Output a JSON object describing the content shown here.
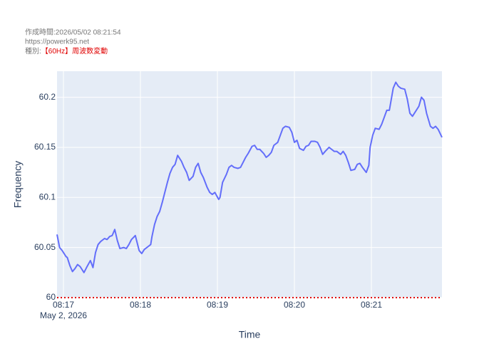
{
  "header": {
    "created": "作成時間:2026/05/02 08:21:54",
    "url": "https://powerk95.net",
    "kind_label": "種別:",
    "kind_value": "【60Hz】周波数変動"
  },
  "chart_data": {
    "type": "line",
    "x_label": "Time",
    "y_label": "Frequency",
    "x_date_label": "May 2, 2026",
    "xlim": [
      29815,
      30115
    ],
    "xticks": [
      {
        "value": 29820,
        "label": "08:17"
      },
      {
        "value": 29880,
        "label": "08:18"
      },
      {
        "value": 29940,
        "label": "08:19"
      },
      {
        "value": 30000,
        "label": "08:20"
      },
      {
        "value": 30060,
        "label": "08:21"
      }
    ],
    "ylim": [
      60,
      60.226
    ],
    "yticks": [
      60,
      60.05,
      60.1,
      60.15,
      60.2
    ],
    "grid": true,
    "hline": 60,
    "hline_color": "#e00000",
    "x": [
      29815,
      29817,
      29819,
      29822,
      29823,
      29825,
      29827,
      29829,
      29831,
      29833,
      29836,
      29838,
      29841,
      29843,
      29845,
      29847,
      29849,
      29852,
      29854,
      29856,
      29858,
      29860,
      29862,
      29864,
      29867,
      29869,
      29871,
      29873,
      29876,
      29877,
      29879,
      29881,
      29883,
      29886,
      29888,
      29889,
      29891,
      29893,
      29895,
      29897,
      29899,
      29901,
      29903,
      29905,
      29907,
      29909,
      29912,
      29914,
      29916,
      29918,
      29921,
      29923,
      29925,
      29927,
      29929,
      29932,
      29934,
      29936,
      29938,
      29941,
      29942,
      29944,
      29947,
      29949,
      29951,
      29953,
      29956,
      29958,
      29960,
      29962,
      29964,
      29967,
      29969,
      29971,
      29973,
      29976,
      29978,
      29980,
      29982,
      29984,
      29987,
      29989,
      29991,
      29993,
      29996,
      29998,
      30000,
      30002,
      30004,
      30007,
      30009,
      30011,
      30013,
      30016,
      30018,
      30020,
      30022,
      30024,
      30027,
      30029,
      30031,
      30033,
      30036,
      30038,
      30040,
      30042,
      30044,
      30047,
      30049,
      30051,
      30053,
      30056,
      30058,
      30059,
      30061,
      30063,
      30066,
      30068,
      30070,
      30072,
      30074,
      30077,
      30079,
      30081,
      30083,
      30086,
      30088,
      30090,
      30092,
      30094,
      30097,
      30099,
      30101,
      30103,
      30106,
      30108,
      30110,
      30112,
      30115
    ],
    "series": [
      {
        "name": "Frequency",
        "color": "#636efa",
        "values": [
          60.063,
          60.05,
          60.047,
          60.041,
          60.04,
          60.032,
          60.026,
          60.029,
          60.033,
          60.031,
          60.025,
          60.03,
          60.037,
          60.03,
          60.045,
          60.053,
          60.056,
          60.059,
          60.058,
          60.061,
          60.062,
          60.068,
          60.057,
          60.049,
          60.05,
          60.049,
          60.053,
          60.058,
          60.062,
          60.057,
          60.047,
          60.044,
          60.048,
          60.051,
          60.053,
          60.061,
          60.073,
          60.081,
          60.086,
          60.095,
          60.105,
          60.115,
          60.124,
          60.13,
          60.133,
          60.142,
          60.136,
          60.13,
          60.125,
          60.117,
          60.121,
          60.13,
          60.134,
          60.125,
          60.12,
          60.11,
          60.105,
          60.103,
          60.105,
          60.098,
          60.1,
          60.115,
          60.123,
          60.13,
          60.132,
          60.13,
          60.129,
          60.13,
          60.135,
          60.14,
          60.144,
          60.151,
          60.152,
          60.148,
          60.148,
          60.144,
          60.14,
          60.142,
          60.145,
          60.152,
          60.155,
          60.162,
          60.169,
          60.171,
          60.17,
          60.165,
          60.155,
          60.157,
          60.149,
          60.147,
          60.151,
          60.152,
          60.156,
          60.156,
          60.155,
          60.15,
          60.143,
          60.146,
          60.15,
          60.148,
          60.146,
          60.146,
          60.143,
          60.146,
          60.142,
          60.135,
          60.127,
          60.128,
          60.133,
          60.134,
          60.13,
          60.125,
          60.132,
          60.15,
          60.162,
          60.169,
          60.168,
          60.173,
          60.18,
          60.187,
          60.187,
          60.209,
          60.215,
          60.211,
          60.209,
          60.208,
          60.198,
          60.184,
          60.181,
          60.185,
          60.191,
          60.2,
          60.197,
          60.184,
          60.171,
          60.169,
          60.171,
          60.168,
          60.16
        ]
      }
    ]
  }
}
